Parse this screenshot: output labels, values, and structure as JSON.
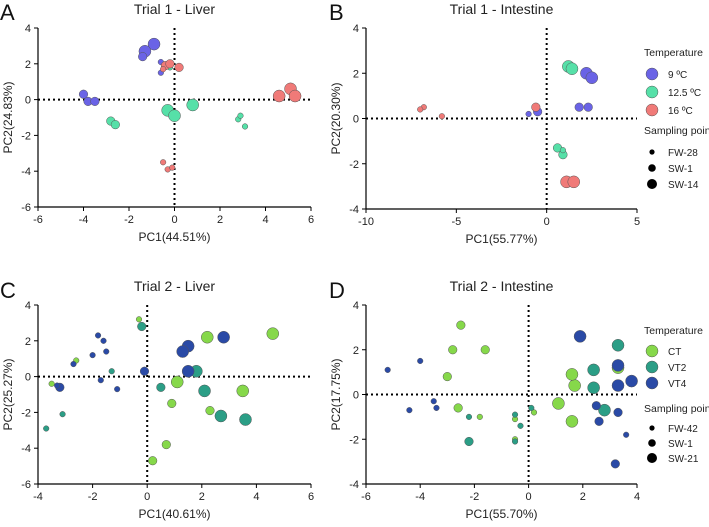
{
  "colors": {
    "c9": "#6a63e6",
    "c12": "#56e0a8",
    "c16": "#f07a78",
    "ct": "#86d84a",
    "vt2": "#2b9e86",
    "vt4": "#2a4aa6",
    "edge": "#555555",
    "axis": "#000000"
  },
  "legends": {
    "temp_title": "Temperature",
    "sp_title": "Sampling point",
    "trial1_temp": [
      "9 ºC",
      "12.5 ºC",
      "16 ºC"
    ],
    "trial1_sp": [
      "FW-28",
      "SW-1",
      "SW-14"
    ],
    "trial2_temp": [
      "CT",
      "VT2",
      "VT4"
    ],
    "trial2_sp": [
      "FW-42",
      "SW-1",
      "SW-21"
    ]
  },
  "chart_data": [
    {
      "panel": "A",
      "type": "scatter",
      "title": "Trial 1 - Liver",
      "xlabel": "PC1(44.51%)",
      "ylabel": "PC2(24.83%)",
      "xlim": [
        -6,
        6
      ],
      "ylim": [
        -6,
        4
      ],
      "xticks": [
        -6,
        -4,
        -2,
        0,
        2,
        4,
        6
      ],
      "yticks": [
        -6,
        -4,
        -2,
        0,
        2,
        4
      ],
      "zero_lines": true,
      "points": [
        {
          "x": -0.9,
          "y": 3.1,
          "g": "c9",
          "s": 3
        },
        {
          "x": -1.3,
          "y": 2.7,
          "g": "c9",
          "s": 3
        },
        {
          "x": -1.4,
          "y": 2.4,
          "g": "c9",
          "s": 2
        },
        {
          "x": -0.6,
          "y": 2.1,
          "g": "c9",
          "s": 1
        },
        {
          "x": -0.6,
          "y": 1.5,
          "g": "c9",
          "s": 1
        },
        {
          "x": -4.0,
          "y": 0.3,
          "g": "c9",
          "s": 2
        },
        {
          "x": -3.8,
          "y": -0.1,
          "g": "c9",
          "s": 2
        },
        {
          "x": -3.5,
          "y": -0.1,
          "g": "c9",
          "s": 2
        },
        {
          "x": -0.2,
          "y": 1.8,
          "g": "c12",
          "s": 1
        },
        {
          "x": -0.3,
          "y": -0.6,
          "g": "c12",
          "s": 3
        },
        {
          "x": 0.0,
          "y": -0.9,
          "g": "c12",
          "s": 3
        },
        {
          "x": 0.8,
          "y": -0.3,
          "g": "c12",
          "s": 3
        },
        {
          "x": -2.8,
          "y": -1.2,
          "g": "c12",
          "s": 2
        },
        {
          "x": -2.6,
          "y": -1.4,
          "g": "c12",
          "s": 2
        },
        {
          "x": 2.8,
          "y": -1.1,
          "g": "c12",
          "s": 1
        },
        {
          "x": 2.9,
          "y": -0.9,
          "g": "c12",
          "s": 1
        },
        {
          "x": 3.1,
          "y": -1.5,
          "g": "c12",
          "s": 1
        },
        {
          "x": -0.4,
          "y": 1.9,
          "g": "c16",
          "s": 2
        },
        {
          "x": -0.2,
          "y": 2.0,
          "g": "c16",
          "s": 2
        },
        {
          "x": 0.2,
          "y": 1.8,
          "g": "c16",
          "s": 2
        },
        {
          "x": -0.5,
          "y": 1.7,
          "g": "c16",
          "s": 1
        },
        {
          "x": -0.5,
          "y": -3.5,
          "g": "c16",
          "s": 1
        },
        {
          "x": -0.3,
          "y": -3.9,
          "g": "c16",
          "s": 1
        },
        {
          "x": -0.1,
          "y": -3.8,
          "g": "c16",
          "s": 1
        },
        {
          "x": 4.6,
          "y": 0.2,
          "g": "c16",
          "s": 3
        },
        {
          "x": 5.1,
          "y": 0.6,
          "g": "c16",
          "s": 3
        },
        {
          "x": 5.3,
          "y": 0.2,
          "g": "c16",
          "s": 3
        }
      ]
    },
    {
      "panel": "B",
      "type": "scatter",
      "title": "Trial 1 - Intestine",
      "xlabel": "PC1(55.77%)",
      "ylabel": "PC2(20.30%)",
      "xlim": [
        -10,
        5
      ],
      "ylim": [
        -4,
        4
      ],
      "xticks": [
        -10,
        -5,
        0,
        5
      ],
      "yticks": [
        -4,
        -2,
        0,
        2,
        4
      ],
      "zero_lines": true,
      "points": [
        {
          "x": 2.2,
          "y": 2.0,
          "g": "c9",
          "s": 3
        },
        {
          "x": 2.5,
          "y": 1.8,
          "g": "c9",
          "s": 3
        },
        {
          "x": 1.8,
          "y": 0.5,
          "g": "c9",
          "s": 2
        },
        {
          "x": 2.3,
          "y": 0.5,
          "g": "c9",
          "s": 2
        },
        {
          "x": -1.0,
          "y": 0.2,
          "g": "c9",
          "s": 1
        },
        {
          "x": -0.5,
          "y": 0.3,
          "g": "c9",
          "s": 2
        },
        {
          "x": 1.2,
          "y": 2.3,
          "g": "c12",
          "s": 3
        },
        {
          "x": 1.4,
          "y": 2.2,
          "g": "c12",
          "s": 3
        },
        {
          "x": 0.6,
          "y": -1.3,
          "g": "c12",
          "s": 2
        },
        {
          "x": 0.9,
          "y": -1.6,
          "g": "c12",
          "s": 2
        },
        {
          "x": 0.9,
          "y": -1.4,
          "g": "c12",
          "s": 1
        },
        {
          "x": -6.8,
          "y": 0.5,
          "g": "c16",
          "s": 1
        },
        {
          "x": -7.0,
          "y": 0.4,
          "g": "c16",
          "s": 1
        },
        {
          "x": -5.8,
          "y": 0.1,
          "g": "c16",
          "s": 1
        },
        {
          "x": -0.6,
          "y": 0.5,
          "g": "c16",
          "s": 2
        },
        {
          "x": 1.1,
          "y": -2.8,
          "g": "c16",
          "s": 3
        },
        {
          "x": 1.5,
          "y": -2.8,
          "g": "c16",
          "s": 3
        }
      ]
    },
    {
      "panel": "C",
      "type": "scatter",
      "title": "Trial 2 - Liver",
      "xlabel": "PC1(40.61%)",
      "ylabel": "PC2(25.27%)",
      "xlim": [
        -4,
        6
      ],
      "ylim": [
        -6,
        4
      ],
      "xticks": [
        -4,
        -2,
        0,
        2,
        4,
        6
      ],
      "yticks": [
        -6,
        -4,
        -2,
        0,
        2,
        4
      ],
      "zero_lines": true,
      "points": [
        {
          "x": -0.3,
          "y": 3.2,
          "g": "ct",
          "s": 1
        },
        {
          "x": -3.5,
          "y": -0.4,
          "g": "ct",
          "s": 1
        },
        {
          "x": -2.6,
          "y": 0.9,
          "g": "ct",
          "s": 1
        },
        {
          "x": 4.6,
          "y": 2.4,
          "g": "ct",
          "s": 3
        },
        {
          "x": 2.2,
          "y": 2.2,
          "g": "ct",
          "s": 3
        },
        {
          "x": 1.1,
          "y": -0.3,
          "g": "ct",
          "s": 3
        },
        {
          "x": 2.3,
          "y": -1.9,
          "g": "ct",
          "s": 2
        },
        {
          "x": 3.5,
          "y": -0.8,
          "g": "ct",
          "s": 3
        },
        {
          "x": 0.9,
          "y": -1.5,
          "g": "ct",
          "s": 2
        },
        {
          "x": 0.7,
          "y": -3.8,
          "g": "ct",
          "s": 2
        },
        {
          "x": 0.2,
          "y": -4.7,
          "g": "ct",
          "s": 2
        },
        {
          "x": -0.2,
          "y": 2.8,
          "g": "vt2",
          "s": 2
        },
        {
          "x": 1.8,
          "y": 0.3,
          "g": "vt2",
          "s": 3
        },
        {
          "x": 2.1,
          "y": -0.8,
          "g": "vt2",
          "s": 3
        },
        {
          "x": 0.5,
          "y": -0.6,
          "g": "vt2",
          "s": 2
        },
        {
          "x": 3.6,
          "y": -2.4,
          "g": "vt2",
          "s": 3
        },
        {
          "x": 2.7,
          "y": -2.2,
          "g": "vt2",
          "s": 3
        },
        {
          "x": -3.1,
          "y": -2.1,
          "g": "vt2",
          "s": 1
        },
        {
          "x": -3.7,
          "y": -2.9,
          "g": "vt2",
          "s": 1
        },
        {
          "x": -1.3,
          "y": 0.3,
          "g": "vt2",
          "s": 1
        },
        {
          "x": 1.5,
          "y": 1.7,
          "g": "vt4",
          "s": 3
        },
        {
          "x": 2.8,
          "y": 2.2,
          "g": "vt4",
          "s": 3
        },
        {
          "x": 1.5,
          "y": 0.3,
          "g": "vt4",
          "s": 3
        },
        {
          "x": 1.3,
          "y": 1.4,
          "g": "vt4",
          "s": 3
        },
        {
          "x": -1.6,
          "y": 2.0,
          "g": "vt4",
          "s": 1
        },
        {
          "x": -1.8,
          "y": 2.3,
          "g": "vt4",
          "s": 1
        },
        {
          "x": -1.5,
          "y": 1.4,
          "g": "vt4",
          "s": 1
        },
        {
          "x": -3.2,
          "y": -0.6,
          "g": "vt4",
          "s": 2
        },
        {
          "x": -1.7,
          "y": -0.2,
          "g": "vt4",
          "s": 1
        },
        {
          "x": -2.0,
          "y": 1.2,
          "g": "vt4",
          "s": 1
        },
        {
          "x": -1.1,
          "y": -0.7,
          "g": "vt4",
          "s": 1
        },
        {
          "x": -0.1,
          "y": 0.3,
          "g": "vt4",
          "s": 2
        },
        {
          "x": -2.7,
          "y": 0.7,
          "g": "vt4",
          "s": 1
        },
        {
          "x": -3.3,
          "y": -0.5,
          "g": "vt4",
          "s": 1
        }
      ]
    },
    {
      "panel": "D",
      "type": "scatter",
      "title": "Trial 2 - Intestine",
      "xlabel": "PC1(55.70%)",
      "ylabel": "PC2(17.75%)",
      "xlim": [
        -6,
        4
      ],
      "ylim": [
        -4,
        4
      ],
      "xticks": [
        -6,
        -4,
        -2,
        0,
        2,
        4
      ],
      "yticks": [
        -4,
        -2,
        0,
        2,
        4
      ],
      "zero_lines": true,
      "points": [
        {
          "x": -2.5,
          "y": 3.1,
          "g": "ct",
          "s": 2
        },
        {
          "x": -2.8,
          "y": 2.0,
          "g": "ct",
          "s": 2
        },
        {
          "x": -1.6,
          "y": 2.0,
          "g": "ct",
          "s": 2
        },
        {
          "x": -3.0,
          "y": 0.8,
          "g": "ct",
          "s": 2
        },
        {
          "x": -2.6,
          "y": -0.6,
          "g": "ct",
          "s": 2
        },
        {
          "x": -1.8,
          "y": -1.0,
          "g": "ct",
          "s": 1
        },
        {
          "x": -0.5,
          "y": -1.1,
          "g": "ct",
          "s": 1
        },
        {
          "x": -0.5,
          "y": -2.0,
          "g": "ct",
          "s": 1
        },
        {
          "x": 0.2,
          "y": -0.8,
          "g": "ct",
          "s": 1
        },
        {
          "x": 1.1,
          "y": -0.4,
          "g": "ct",
          "s": 3
        },
        {
          "x": 1.7,
          "y": 0.4,
          "g": "ct",
          "s": 3
        },
        {
          "x": 1.6,
          "y": 0.9,
          "g": "ct",
          "s": 3
        },
        {
          "x": 1.6,
          "y": -1.2,
          "g": "ct",
          "s": 3
        },
        {
          "x": 3.3,
          "y": 1.2,
          "g": "ct",
          "s": 3
        },
        {
          "x": -2.2,
          "y": -2.1,
          "g": "vt2",
          "s": 2
        },
        {
          "x": -0.3,
          "y": -1.4,
          "g": "vt2",
          "s": 1
        },
        {
          "x": -0.5,
          "y": -0.9,
          "g": "vt2",
          "s": 1
        },
        {
          "x": 0.1,
          "y": -0.6,
          "g": "vt2",
          "s": 1
        },
        {
          "x": -0.5,
          "y": -2.1,
          "g": "vt2",
          "s": 1
        },
        {
          "x": 2.4,
          "y": 0.3,
          "g": "vt2",
          "s": 3
        },
        {
          "x": 2.4,
          "y": 1.1,
          "g": "vt2",
          "s": 3
        },
        {
          "x": 3.3,
          "y": 2.2,
          "g": "vt2",
          "s": 3
        },
        {
          "x": 2.8,
          "y": -0.7,
          "g": "vt2",
          "s": 3
        },
        {
          "x": -2.2,
          "y": -1.0,
          "g": "vt2",
          "s": 1
        },
        {
          "x": -5.2,
          "y": 1.1,
          "g": "vt4",
          "s": 1
        },
        {
          "x": -4.0,
          "y": 1.5,
          "g": "vt4",
          "s": 1
        },
        {
          "x": -4.4,
          "y": -0.7,
          "g": "vt4",
          "s": 1
        },
        {
          "x": -3.5,
          "y": -0.3,
          "g": "vt4",
          "s": 1
        },
        {
          "x": -3.4,
          "y": -0.6,
          "g": "vt4",
          "s": 1
        },
        {
          "x": 1.9,
          "y": 2.6,
          "g": "vt4",
          "s": 3
        },
        {
          "x": 3.3,
          "y": 1.3,
          "g": "vt4",
          "s": 3
        },
        {
          "x": 3.8,
          "y": 0.6,
          "g": "vt4",
          "s": 3
        },
        {
          "x": 3.3,
          "y": 0.4,
          "g": "vt4",
          "s": 3
        },
        {
          "x": 2.6,
          "y": -1.2,
          "g": "vt4",
          "s": 2
        },
        {
          "x": 3.3,
          "y": -0.8,
          "g": "vt4",
          "s": 2
        },
        {
          "x": 3.2,
          "y": -3.1,
          "g": "vt4",
          "s": 2
        },
        {
          "x": 3.6,
          "y": -1.8,
          "g": "vt4",
          "s": 1
        },
        {
          "x": 2.5,
          "y": -0.5,
          "g": "vt4",
          "s": 2
        }
      ]
    }
  ],
  "panel_labels": [
    "A",
    "B",
    "C",
    "D"
  ]
}
